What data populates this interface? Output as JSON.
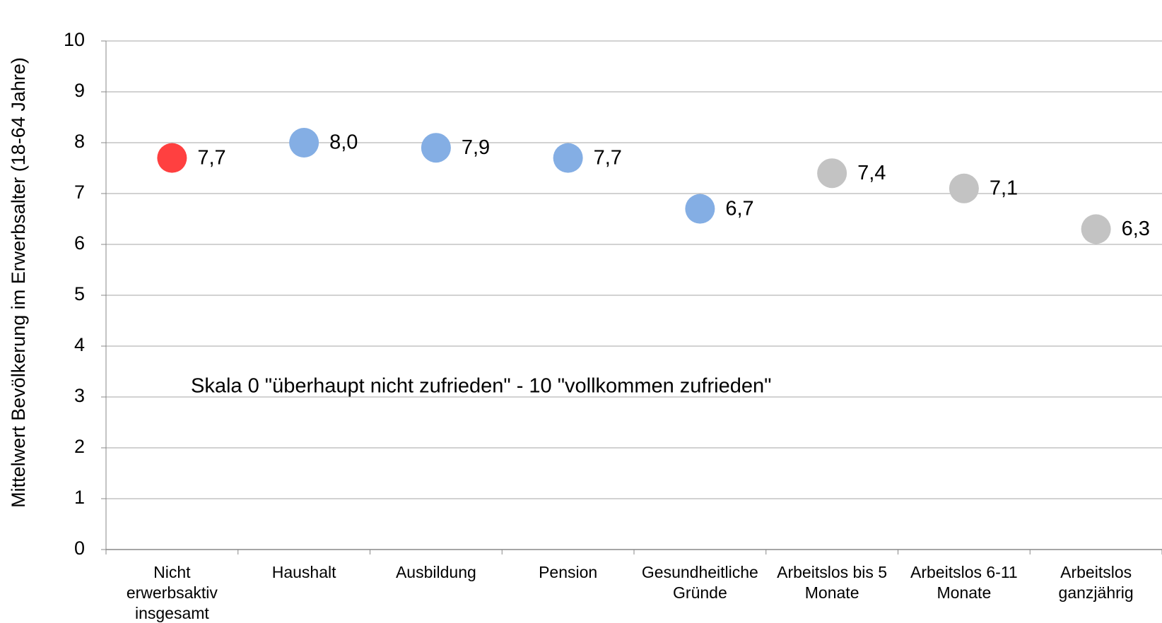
{
  "chart_data": {
    "type": "dot",
    "ylabel": "Mittelwert  Bevölkerung im Erwerbsalter (18-64 Jahre)",
    "annotation": "Skala 0 \"überhaupt nicht zufrieden\" - 10 \"vollkommen zufrieden\"",
    "categories": [
      "Nicht\nerwerbsaktiv\ninsgesamt",
      "Haushalt",
      "Ausbildung",
      "Pension",
      "Gesundheitliche\nGründe",
      "Arbeitslos bis 5\nMonate",
      "Arbeitslos 6-11\nMonate",
      "Arbeitslos\nganzjährig"
    ],
    "values": [
      7.7,
      8.0,
      7.9,
      7.7,
      6.7,
      7.4,
      7.1,
      6.3
    ],
    "value_labels": [
      "7,7",
      "8,0",
      "7,9",
      "7,7",
      "6,7",
      "7,4",
      "7,1",
      "6,3"
    ],
    "colors": [
      "#ff4040",
      "#84aee4",
      "#84aee4",
      "#84aee4",
      "#84aee4",
      "#c3c3c3",
      "#c3c3c3",
      "#c3c3c3"
    ],
    "ylim": [
      0,
      10
    ],
    "yticks": [
      0,
      1,
      2,
      3,
      4,
      5,
      6,
      7,
      8,
      9,
      10
    ],
    "grid": true
  }
}
